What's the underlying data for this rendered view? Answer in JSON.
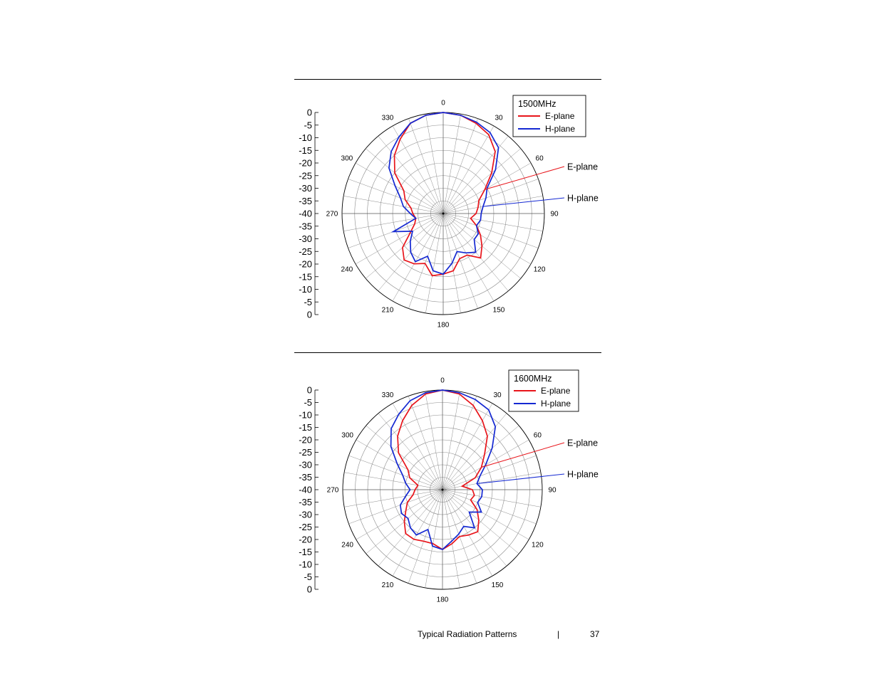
{
  "footer": {
    "title": "Typical Radiation Patterns",
    "separator": "|",
    "page_number": "37"
  },
  "colors": {
    "e_plane": "#e8141a",
    "h_plane": "#1428d2",
    "grid": "#8c8c8c",
    "axis": "#000000"
  },
  "chart_data": [
    {
      "type": "polar",
      "title": "1500MHz",
      "radial_axis": {
        "ticks": [
          "0",
          "-5",
          "-10",
          "-15",
          "-20",
          "-25",
          "-30",
          "-35",
          "-40",
          "-35",
          "-30",
          "-25",
          "-20",
          "-15",
          "-10",
          "-5",
          "0"
        ],
        "range_db": [
          -40,
          0
        ],
        "rings_db_step": 5
      },
      "angle_labels": [
        "0",
        "30",
        "60",
        "90",
        "120",
        "150",
        "180",
        "210",
        "240",
        "270",
        "300",
        "330"
      ],
      "legend": {
        "position": "top-right",
        "entries": [
          "E-plane",
          "H-plane"
        ]
      },
      "callouts": [
        "E-plane",
        "H-plane"
      ],
      "series": [
        {
          "name": "E-plane",
          "angles_deg": [
            0,
            10,
            20,
            30,
            40,
            50,
            60,
            70,
            80,
            90,
            100,
            110,
            120,
            130,
            140,
            150,
            160,
            170,
            180,
            190,
            200,
            210,
            220,
            230,
            240,
            250,
            260,
            270,
            280,
            290,
            300,
            310,
            320,
            330,
            340,
            350
          ],
          "values_db": [
            0,
            -0.5,
            -2,
            -4,
            -8,
            -15,
            -21,
            -25,
            -26,
            -27,
            -29,
            -26,
            -23,
            -20,
            -17,
            -21,
            -21,
            -17,
            -16,
            -15,
            -19,
            -17,
            -16,
            -19,
            -25,
            -28,
            -29,
            -28,
            -27,
            -24,
            -22,
            -15,
            -10,
            -6,
            -2,
            -0.5
          ]
        },
        {
          "name": "H-plane",
          "angles_deg": [
            0,
            10,
            20,
            30,
            40,
            50,
            60,
            70,
            80,
            90,
            100,
            110,
            120,
            130,
            140,
            150,
            160,
            170,
            180,
            190,
            200,
            210,
            220,
            230,
            240,
            250,
            260,
            270,
            280,
            290,
            300,
            310,
            320,
            330,
            340,
            350
          ],
          "values_db": [
            0,
            -0.5,
            -1.5,
            -3,
            -6,
            -13,
            -20,
            -22,
            -24,
            -25,
            -25,
            -26,
            -24,
            -24,
            -20,
            -22,
            -24,
            -20,
            -16,
            -17,
            -22,
            -18,
            -20,
            -23,
            -26,
            -19,
            -29,
            -27,
            -24,
            -22,
            -18,
            -12,
            -8,
            -5,
            -2,
            -0.5
          ]
        }
      ]
    },
    {
      "type": "polar",
      "title": "1600MHz",
      "radial_axis": {
        "ticks": [
          "0",
          "-5",
          "-10",
          "-15",
          "-20",
          "-25",
          "-30",
          "-35",
          "-40",
          "-35",
          "-30",
          "-25",
          "-20",
          "-15",
          "-10",
          "-5",
          "0"
        ],
        "range_db": [
          -40,
          0
        ],
        "rings_db_step": 5
      },
      "angle_labels": [
        "0",
        "30",
        "60",
        "90",
        "120",
        "150",
        "180",
        "210",
        "240",
        "270",
        "300",
        "330"
      ],
      "legend": {
        "position": "top-right",
        "entries": [
          "E-plane",
          "H-plane"
        ]
      },
      "callouts": [
        "E-plane",
        "H-plane"
      ],
      "series": [
        {
          "name": "E-plane",
          "angles_deg": [
            0,
            10,
            20,
            30,
            40,
            50,
            60,
            70,
            80,
            90,
            100,
            110,
            120,
            130,
            140,
            150,
            160,
            170,
            180,
            190,
            200,
            210,
            220,
            230,
            240,
            250,
            260,
            270,
            280,
            290,
            300,
            310,
            320,
            330,
            340,
            350
          ],
          "values_db": [
            0,
            -1,
            -4,
            -8,
            -12,
            -18,
            -22,
            -26,
            -32,
            -28,
            -27,
            -28,
            -24,
            -21,
            -18,
            -19,
            -20,
            -18,
            -16,
            -18,
            -18,
            -17,
            -17,
            -20,
            -23,
            -25,
            -28,
            -29,
            -30,
            -26,
            -24,
            -17,
            -12,
            -8,
            -4,
            -1
          ]
        },
        {
          "name": "H-plane",
          "angles_deg": [
            0,
            10,
            20,
            30,
            40,
            50,
            60,
            70,
            80,
            90,
            100,
            110,
            120,
            130,
            140,
            150,
            160,
            170,
            180,
            190,
            200,
            210,
            220,
            230,
            240,
            250,
            260,
            270,
            280,
            290,
            300,
            310,
            320,
            330,
            340,
            350
          ],
          "values_db": [
            0,
            -0.5,
            -1.5,
            -3,
            -7,
            -14,
            -20,
            -24,
            -26,
            -24,
            -24,
            -25,
            -22,
            -26,
            -20,
            -23,
            -21,
            -19,
            -16,
            -17,
            -23,
            -19,
            -20,
            -22,
            -21,
            -22,
            -25,
            -27,
            -25,
            -23,
            -19,
            -13,
            -8,
            -5,
            -2,
            -0.5
          ]
        }
      ]
    }
  ]
}
